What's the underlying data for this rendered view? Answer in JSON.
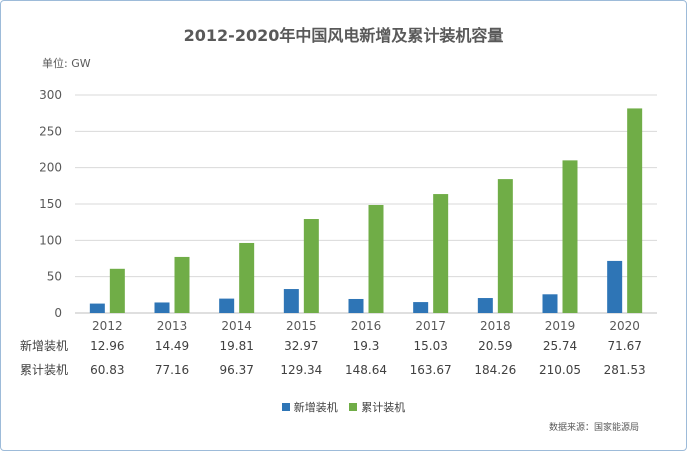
{
  "title": "2012-2020年中国风电新增及累计装机容量",
  "unit_label": "单位: GW",
  "source": "数据来源：国家能源局",
  "colors": {
    "new": "#2e75b6",
    "cumulative": "#70ad47",
    "grid": "#d9d9d9",
    "text": "#595959"
  },
  "chart_data": {
    "type": "bar",
    "title": "2012-2020年中国风电新增及累计装机容量",
    "ylabel": "单位: GW",
    "ylim": [
      0,
      300
    ],
    "yticks": [
      0,
      50,
      100,
      150,
      200,
      250,
      300
    ],
    "categories": [
      "2012",
      "2013",
      "2014",
      "2015",
      "2016",
      "2017",
      "2018",
      "2019",
      "2020"
    ],
    "series": [
      {
        "name": "新增装机",
        "values": [
          12.96,
          14.49,
          19.81,
          32.97,
          19.3,
          15.03,
          20.59,
          25.74,
          71.67
        ]
      },
      {
        "name": "累计装机",
        "values": [
          60.83,
          77.16,
          96.37,
          129.34,
          148.64,
          163.67,
          184.26,
          210.05,
          281.53
        ]
      }
    ],
    "data_table": {
      "rows": [
        {
          "label": "新增装机",
          "values": [
            "12.96",
            "14.49",
            "19.81",
            "32.97",
            "19.3",
            "15.03",
            "20.59",
            "25.74",
            "71.67"
          ]
        },
        {
          "label": "累计装机",
          "values": [
            "60.83",
            "77.16",
            "96.37",
            "129.34",
            "148.64",
            "163.67",
            "184.26",
            "210.05",
            "281.53"
          ]
        }
      ]
    },
    "legend_position": "bottom",
    "grid": true
  }
}
